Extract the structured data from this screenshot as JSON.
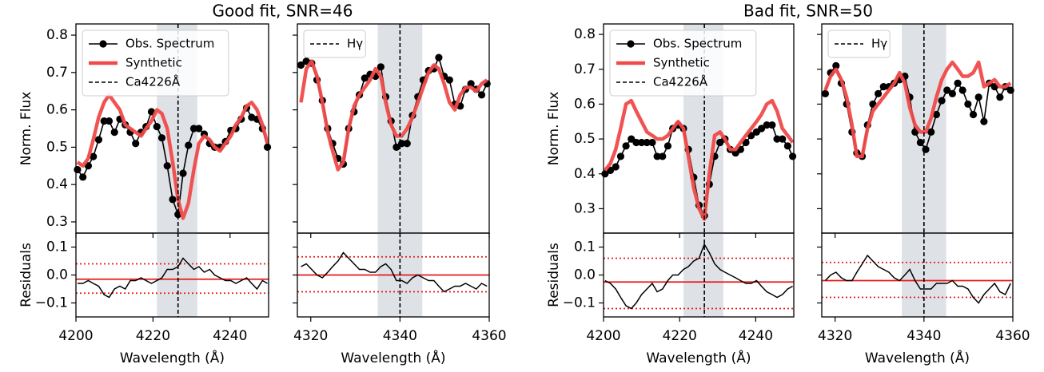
{
  "chart_data": [
    {
      "type": "line",
      "title": "Good fit, SNR=46",
      "xlabel": "Wavelength (Å)",
      "xlim": [
        4200,
        4250
      ],
      "xticks": [
        4200,
        4220,
        4240
      ],
      "x": [
        4200.4,
        4201.8,
        4203.2,
        4204.5,
        4205.9,
        4207.3,
        4208.6,
        4210.0,
        4211.4,
        4212.8,
        4214.1,
        4215.5,
        4216.9,
        4218.2,
        4219.6,
        4221.0,
        4222.3,
        4223.7,
        4225.1,
        4226.5,
        4227.8,
        4229.2,
        4230.6,
        4231.9,
        4233.3,
        4234.7,
        4236.0,
        4237.4,
        4238.8,
        4240.2,
        4241.5,
        4242.9,
        4244.3,
        4245.6,
        4247.0,
        4248.4,
        4249.7
      ],
      "show_ytick_labels": true,
      "band": [
        4221,
        4231.5
      ],
      "band_color": "#d3d8dd",
      "vline": {
        "x": 4226.5,
        "label": "Ca4226Å",
        "color": "#000000"
      },
      "legend": "upper left",
      "flux": {
        "ylabel": "Norm. Flux",
        "ylim": [
          0.27,
          0.83
        ],
        "yticks": [
          0.3,
          0.4,
          0.5,
          0.6,
          0.7,
          0.8
        ],
        "series": [
          {
            "name": "Obs. Spectrum",
            "color": "#000000",
            "marker": true,
            "values": [
              0.44,
              0.42,
              0.45,
              0.475,
              0.52,
              0.57,
              0.57,
              0.54,
              0.575,
              0.56,
              0.54,
              0.51,
              0.54,
              0.555,
              0.595,
              0.555,
              0.525,
              0.45,
              0.36,
              0.32,
              0.43,
              0.505,
              0.55,
              0.55,
              0.535,
              0.51,
              0.5,
              0.5,
              0.515,
              0.545,
              0.55,
              0.575,
              0.605,
              0.58,
              0.575,
              0.55,
              0.5
            ]
          },
          {
            "name": "Synthetic",
            "color": "#f04a4a",
            "marker": false,
            "values": [
              0.46,
              0.45,
              0.47,
              0.52,
              0.58,
              0.62,
              0.64,
              0.62,
              0.6,
              0.56,
              0.55,
              0.54,
              0.53,
              0.55,
              0.57,
              0.6,
              0.59,
              0.55,
              0.46,
              0.36,
              0.31,
              0.35,
              0.44,
              0.51,
              0.53,
              0.52,
              0.5,
              0.49,
              0.51,
              0.53,
              0.56,
              0.58,
              0.61,
              0.62,
              0.6,
              0.56,
              0.51
            ]
          }
        ]
      },
      "residuals": {
        "ylabel": "Residuals",
        "ylim": [
          -0.15,
          0.15
        ],
        "yticks": [
          {
            "value": -0.1,
            "label": "−0.1"
          },
          {
            "value": 0,
            "label": "0.0"
          },
          0.1
        ],
        "color": "#000000",
        "values": [
          -0.03,
          -0.03,
          -0.02,
          -0.03,
          -0.04,
          -0.07,
          -0.08,
          -0.05,
          -0.04,
          -0.05,
          -0.02,
          -0.02,
          -0.01,
          -0.02,
          -0.03,
          -0.02,
          -0.01,
          0.02,
          0.02,
          0.03,
          0.06,
          0.04,
          0.02,
          0.03,
          0.01,
          0.02,
          0.0,
          -0.01,
          -0.02,
          -0.02,
          -0.03,
          -0.02,
          -0.01,
          -0.03,
          -0.05,
          -0.02,
          -0.03
        ],
        "hlines": [
          {
            "y": -0.015,
            "style": "solid",
            "color": "#e41a1c"
          },
          {
            "y": 0.04,
            "style": "dotted",
            "color": "#e41a1c"
          },
          {
            "y": -0.065,
            "style": "dotted",
            "color": "#e41a1c"
          }
        ]
      }
    },
    {
      "type": "line",
      "xlabel": "Wavelength (Å)",
      "xlim": [
        4317,
        4360
      ],
      "xticks": [
        4320,
        4340,
        4360
      ],
      "x": [
        4317.8,
        4319.0,
        4320.2,
        4321.4,
        4322.6,
        4323.8,
        4324.9,
        4326.1,
        4327.3,
        4328.5,
        4329.7,
        4330.9,
        4332.1,
        4333.3,
        4334.5,
        4335.7,
        4336.8,
        4338.0,
        4339.2,
        4340.4,
        4341.6,
        4342.8,
        4344.0,
        4345.2,
        4346.4,
        4347.6,
        4348.7,
        4349.9,
        4351.1,
        4352.3,
        4353.5,
        4354.7,
        4355.9,
        4357.1,
        4358.3,
        4359.5
      ],
      "show_ytick_labels": false,
      "band": [
        4335,
        4345
      ],
      "band_color": "#d3d8dd",
      "vline": {
        "x": 4340,
        "label": "Hγ",
        "color": "#000000"
      },
      "legend": "upper left",
      "flux": {
        "ylim": [
          0.27,
          0.83
        ],
        "yticks": [
          0.3,
          0.4,
          0.5,
          0.6,
          0.7,
          0.8
        ],
        "series": [
          {
            "color": "#000000",
            "marker": true,
            "values": [
              0.72,
              0.73,
              0.725,
              0.68,
              0.625,
              0.55,
              0.51,
              0.47,
              0.455,
              0.55,
              0.595,
              0.64,
              0.685,
              0.695,
              0.69,
              0.715,
              0.635,
              0.57,
              0.5,
              0.51,
              0.51,
              0.585,
              0.635,
              0.68,
              0.705,
              0.71,
              0.74,
              0.69,
              0.68,
              0.615,
              0.61,
              0.655,
              0.67,
              0.655,
              0.64,
              0.67
            ]
          },
          {
            "color": "#f04a4a",
            "marker": false,
            "values": [
              0.62,
              0.71,
              0.73,
              0.69,
              0.62,
              0.54,
              0.49,
              0.44,
              0.46,
              0.55,
              0.61,
              0.64,
              0.66,
              0.68,
              0.71,
              0.69,
              0.62,
              0.56,
              0.53,
              0.53,
              0.55,
              0.58,
              0.62,
              0.66,
              0.7,
              0.72,
              0.71,
              0.67,
              0.62,
              0.6,
              0.64,
              0.66,
              0.66,
              0.65,
              0.67,
              0.68
            ]
          }
        ]
      },
      "residuals": {
        "ylim": [
          -0.15,
          0.15
        ],
        "yticks": [
          -0.1,
          0,
          0.1
        ],
        "color": "#000000",
        "values": [
          0.03,
          0.04,
          0.02,
          0.0,
          -0.01,
          0.01,
          0.03,
          0.05,
          0.08,
          0.06,
          0.04,
          0.02,
          0.02,
          0.01,
          0.01,
          0.03,
          0.04,
          0.02,
          -0.02,
          -0.02,
          -0.03,
          -0.01,
          0.0,
          -0.01,
          -0.02,
          -0.02,
          -0.04,
          -0.06,
          -0.05,
          -0.04,
          -0.04,
          -0.03,
          -0.04,
          -0.05,
          -0.03,
          -0.04
        ],
        "hlines": [
          {
            "y": 0.0,
            "style": "solid",
            "color": "#e41a1c"
          },
          {
            "y": 0.065,
            "style": "dotted",
            "color": "#e41a1c"
          },
          {
            "y": -0.06,
            "style": "dotted",
            "color": "#e41a1c"
          }
        ]
      }
    },
    {
      "type": "line",
      "title": "Bad fit, SNR=50",
      "xlabel": "Wavelength (Å)",
      "xlim": [
        4200,
        4250
      ],
      "xticks": [
        4200,
        4220,
        4240
      ],
      "x": [
        4200.4,
        4201.8,
        4203.2,
        4204.5,
        4205.9,
        4207.3,
        4208.6,
        4210.0,
        4211.4,
        4212.8,
        4214.1,
        4215.5,
        4216.9,
        4218.2,
        4219.6,
        4221.0,
        4222.3,
        4223.7,
        4225.1,
        4226.5,
        4227.8,
        4229.2,
        4230.6,
        4231.9,
        4233.3,
        4234.7,
        4236.0,
        4237.4,
        4238.8,
        4240.2,
        4241.5,
        4242.9,
        4244.3,
        4245.6,
        4247.0,
        4248.4,
        4249.7
      ],
      "show_ytick_labels": true,
      "band": [
        4221,
        4231.5
      ],
      "band_color": "#d3d8dd",
      "vline": {
        "x": 4226.5,
        "label": "Ca4226Å",
        "color": "#000000"
      },
      "legend": "upper left",
      "flux": {
        "ylabel": "Norm. Flux",
        "ylim": [
          0.23,
          0.83
        ],
        "yticks": [
          0.3,
          0.4,
          0.5,
          0.6,
          0.7,
          0.8
        ],
        "series": [
          {
            "name": "Obs. Spectrum",
            "color": "#000000",
            "marker": true,
            "values": [
              0.4,
              0.41,
              0.42,
              0.45,
              0.48,
              0.5,
              0.49,
              0.49,
              0.49,
              0.49,
              0.45,
              0.45,
              0.48,
              0.53,
              0.54,
              0.53,
              0.47,
              0.39,
              0.31,
              0.28,
              0.37,
              0.45,
              0.49,
              0.5,
              0.47,
              0.46,
              0.47,
              0.49,
              0.51,
              0.52,
              0.53,
              0.54,
              0.54,
              0.5,
              0.5,
              0.48,
              0.45
            ]
          },
          {
            "name": "Synthetic",
            "color": "#f04a4a",
            "marker": false,
            "values": [
              0.41,
              0.43,
              0.47,
              0.53,
              0.6,
              0.61,
              0.58,
              0.55,
              0.52,
              0.51,
              0.5,
              0.5,
              0.51,
              0.53,
              0.55,
              0.53,
              0.45,
              0.36,
              0.3,
              0.27,
              0.4,
              0.51,
              0.52,
              0.5,
              0.47,
              0.47,
              0.49,
              0.51,
              0.53,
              0.55,
              0.57,
              0.6,
              0.61,
              0.58,
              0.53,
              0.51,
              0.49
            ]
          }
        ]
      },
      "residuals": {
        "ylabel": "Residuals",
        "ylim": [
          -0.15,
          0.15
        ],
        "yticks": [
          {
            "value": -0.1,
            "label": "−0.1"
          },
          {
            "value": 0,
            "label": "0.0"
          },
          0.1
        ],
        "color": "#000000",
        "values": [
          -0.02,
          -0.03,
          -0.05,
          -0.08,
          -0.11,
          -0.12,
          -0.1,
          -0.07,
          -0.05,
          -0.03,
          -0.06,
          -0.05,
          -0.02,
          0.0,
          0.0,
          0.02,
          0.03,
          0.05,
          0.06,
          0.11,
          0.08,
          0.04,
          0.02,
          0.01,
          0.0,
          -0.01,
          -0.02,
          -0.03,
          -0.03,
          -0.02,
          -0.04,
          -0.06,
          -0.07,
          -0.08,
          -0.07,
          -0.05,
          -0.04
        ],
        "hlines": [
          {
            "y": -0.025,
            "style": "solid",
            "color": "#e41a1c"
          },
          {
            "y": 0.06,
            "style": "dotted",
            "color": "#e41a1c"
          },
          {
            "y": -0.12,
            "style": "dotted",
            "color": "#e41a1c"
          }
        ]
      }
    },
    {
      "type": "line",
      "xlabel": "Wavelength (Å)",
      "xlim": [
        4317,
        4360
      ],
      "xticks": [
        4320,
        4340,
        4360
      ],
      "x": [
        4317.8,
        4319.0,
        4320.2,
        4321.4,
        4322.6,
        4323.8,
        4324.9,
        4326.1,
        4327.3,
        4328.5,
        4329.7,
        4330.9,
        4332.1,
        4333.3,
        4334.5,
        4335.7,
        4336.8,
        4338.0,
        4339.2,
        4340.4,
        4341.6,
        4342.8,
        4344.0,
        4345.2,
        4346.4,
        4347.6,
        4348.7,
        4349.9,
        4351.1,
        4352.3,
        4353.5,
        4354.7,
        4355.9,
        4357.1,
        4358.3,
        4359.5
      ],
      "show_ytick_labels": false,
      "band": [
        4335,
        4345
      ],
      "band_color": "#d3d8dd",
      "vline": {
        "x": 4340,
        "label": "Hγ",
        "color": "#000000"
      },
      "legend": "upper left",
      "flux": {
        "ylim": [
          0.23,
          0.83
        ],
        "yticks": [
          0.3,
          0.4,
          0.5,
          0.6,
          0.7,
          0.8
        ],
        "series": [
          {
            "color": "#000000",
            "marker": true,
            "values": [
              0.63,
              0.69,
              0.71,
              0.66,
              0.6,
              0.52,
              0.46,
              0.45,
              0.54,
              0.6,
              0.63,
              0.65,
              0.65,
              0.66,
              0.67,
              0.68,
              0.62,
              0.52,
              0.49,
              0.47,
              0.52,
              0.57,
              0.61,
              0.64,
              0.63,
              0.66,
              0.64,
              0.6,
              0.57,
              0.62,
              0.55,
              0.66,
              0.65,
              0.62,
              0.65,
              0.64
            ]
          },
          {
            "color": "#f04a4a",
            "marker": false,
            "values": [
              0.64,
              0.68,
              0.7,
              0.67,
              0.62,
              0.54,
              0.45,
              0.45,
              0.53,
              0.58,
              0.6,
              0.62,
              0.64,
              0.66,
              0.69,
              0.66,
              0.59,
              0.54,
              0.52,
              0.52,
              0.56,
              0.62,
              0.67,
              0.7,
              0.72,
              0.7,
              0.68,
              0.68,
              0.69,
              0.72,
              0.65,
              0.66,
              0.67,
              0.65,
              0.65,
              0.66
            ]
          }
        ]
      },
      "residuals": {
        "ylim": [
          -0.15,
          0.15
        ],
        "yticks": [
          -0.1,
          0,
          0.1
        ],
        "color": "#000000",
        "values": [
          -0.02,
          0.0,
          0.01,
          -0.01,
          -0.02,
          -0.02,
          0.01,
          0.04,
          0.07,
          0.05,
          0.03,
          0.02,
          0.01,
          -0.01,
          -0.02,
          0.0,
          0.02,
          -0.02,
          -0.05,
          -0.05,
          -0.05,
          -0.03,
          -0.03,
          -0.03,
          -0.02,
          -0.04,
          -0.04,
          -0.05,
          -0.08,
          -0.1,
          -0.07,
          -0.05,
          -0.03,
          -0.06,
          -0.07,
          -0.03
        ],
        "hlines": [
          {
            "y": -0.02,
            "style": "solid",
            "color": "#e41a1c"
          },
          {
            "y": 0.045,
            "style": "dotted",
            "color": "#e41a1c"
          },
          {
            "y": -0.08,
            "style": "dotted",
            "color": "#e41a1c"
          }
        ]
      }
    }
  ]
}
